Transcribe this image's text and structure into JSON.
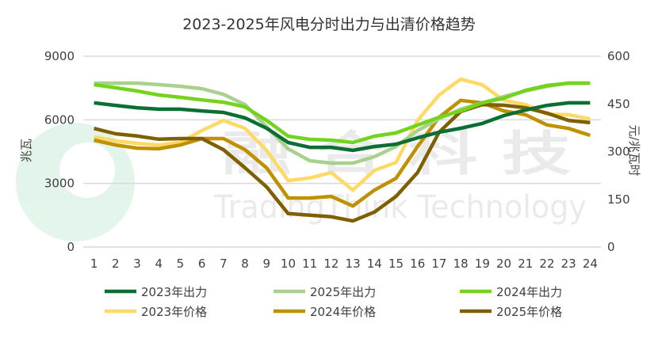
{
  "chart_data": {
    "type": "line",
    "title": "2023-2025年风电分时出力与出清价格趋势",
    "x": [
      1,
      2,
      3,
      4,
      5,
      6,
      7,
      8,
      9,
      10,
      11,
      12,
      13,
      14,
      15,
      16,
      17,
      18,
      19,
      20,
      21,
      22,
      23,
      24
    ],
    "ylabel": "兆瓦",
    "y2label": "元/兆瓦时",
    "ylim": [
      0,
      9000
    ],
    "yticks": [
      0,
      3000,
      6000,
      9000
    ],
    "y2lim": [
      0,
      600
    ],
    "y2ticks": [
      0,
      150,
      300,
      450,
      600
    ],
    "grid": true,
    "legend_position": "bottom",
    "series": [
      {
        "name": "2023年出力",
        "axis": "left",
        "color": "#0b6e33",
        "values": [
          6800,
          6680,
          6570,
          6500,
          6500,
          6420,
          6350,
          6090,
          5600,
          4930,
          4700,
          4700,
          4560,
          4740,
          4850,
          5150,
          5410,
          5600,
          5830,
          6200,
          6460,
          6680,
          6800,
          6800
        ]
      },
      {
        "name": "2025年出力",
        "axis": "left",
        "color": "#a9d18e",
        "values": [
          7730,
          7730,
          7730,
          7660,
          7580,
          7470,
          7200,
          6720,
          5680,
          4630,
          4070,
          3960,
          3960,
          4260,
          4740,
          5490,
          6050,
          6500,
          6800,
          7100,
          7360,
          7580,
          7730,
          7730
        ]
      },
      {
        "name": "2024年出力",
        "axis": "left",
        "color": "#72d41c",
        "values": [
          7660,
          7510,
          7360,
          7170,
          7060,
          6940,
          6830,
          6610,
          5970,
          5230,
          5080,
          5040,
          4930,
          5230,
          5380,
          5750,
          6120,
          6420,
          6800,
          7020,
          7390,
          7620,
          7730,
          7730
        ]
      },
      {
        "name": "2023年价格",
        "axis": "right",
        "color": "#ffd966",
        "values": [
          346,
          334,
          326,
          321,
          329,
          366,
          398,
          373,
          304,
          209,
          217,
          234,
          179,
          241,
          266,
          398,
          478,
          528,
          510,
          461,
          448,
          418,
          416,
          403
        ]
      },
      {
        "name": "2024年价格",
        "axis": "right",
        "color": "#bf9000",
        "values": [
          336,
          321,
          311,
          309,
          321,
          341,
          341,
          306,
          249,
          154,
          154,
          159,
          129,
          179,
          216,
          316,
          408,
          461,
          453,
          428,
          416,
          384,
          373,
          351
        ]
      },
      {
        "name": "2025年价格",
        "axis": "right",
        "color": "#7f6000",
        "values": [
          373,
          356,
          349,
          339,
          341,
          341,
          306,
          249,
          189,
          105,
          100,
          95,
          82,
          110,
          159,
          234,
          361,
          426,
          448,
          446,
          438,
          421,
          398,
          391
        ]
      }
    ]
  },
  "watermark": {
    "cn": "融 合 科 技",
    "en": "TradingThink Technology"
  }
}
